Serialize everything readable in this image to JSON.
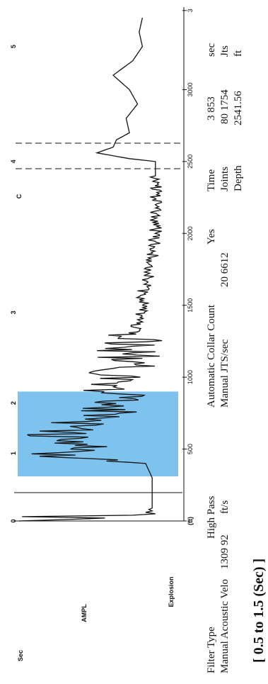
{
  "chart_data": {
    "type": "line",
    "orientation": "rotated-90-ccw",
    "time_axis_label": "Sec",
    "time_ticks": [
      "0",
      "1",
      "2",
      "3",
      "4",
      "5"
    ],
    "depth_ticks": [
      "0",
      "500",
      "1000",
      "1500",
      "2000",
      "2500",
      "3000",
      "3"
    ],
    "depth_unit_label": "(ft)",
    "trace_label": "Explosion",
    "amp_label": "AMPL",
    "marker_c": "C",
    "highlight_range_sec": [
      0.5,
      1.5
    ],
    "highlight_range_ft": [
      310,
      900
    ],
    "highlight_color": "#7ec3ee",
    "trace_color": "#111111",
    "series": [
      {
        "x": [
          0,
          10,
          20,
          30,
          40,
          50,
          60,
          70,
          80,
          90,
          100,
          200,
          300,
          400,
          450,
          500,
          550,
          600,
          650,
          700,
          750,
          800,
          850,
          900,
          950,
          1000,
          1100,
          1200,
          1300,
          1400,
          1500,
          1600,
          1700,
          1800,
          1900,
          2000,
          2100,
          2200,
          2300,
          2400,
          2450,
          2500,
          2520,
          2560,
          2600,
          2650,
          2700,
          2800,
          2900,
          3000,
          3100,
          3200,
          3300,
          3400,
          3500
        ],
        "y": [
          98,
          70,
          45,
          96,
          28,
          14,
          20,
          16,
          18,
          16,
          16,
          16,
          16,
          20,
          85,
          55,
          72,
          74,
          60,
          58,
          42,
          44,
          38,
          40,
          40,
          38,
          32,
          30,
          28,
          25,
          22,
          22,
          18,
          16,
          15,
          14,
          14,
          14,
          14,
          14,
          14,
          14,
          30,
          50,
          40,
          38,
          30,
          32,
          25,
          30,
          40,
          28,
          22,
          24,
          22
        ]
      }
    ]
  },
  "info": {
    "filter_type_label": "Filter Type",
    "filter_type_value": "High Pass",
    "manual_velocity_label": "Manual Acoustic Velo",
    "manual_velocity_value": "1309 92",
    "manual_velocity_unit": "ft/s",
    "auto_collar_label": "Automatic Collar Count",
    "auto_collar_value": "Yes",
    "manual_jts_label": "Manual JTS/sec",
    "manual_jts_value": "20 6612",
    "time_label": "Time",
    "time_value": "3 853",
    "time_unit": "sec",
    "joints_label": "Joints",
    "joints_value": "80 1754",
    "joints_unit": "Jts",
    "depth_label": "Depth",
    "depth_value": "2541.56",
    "depth_unit": "ft",
    "highlight_caption": "[ 0.5  to  1.5 (Sec) ]"
  }
}
